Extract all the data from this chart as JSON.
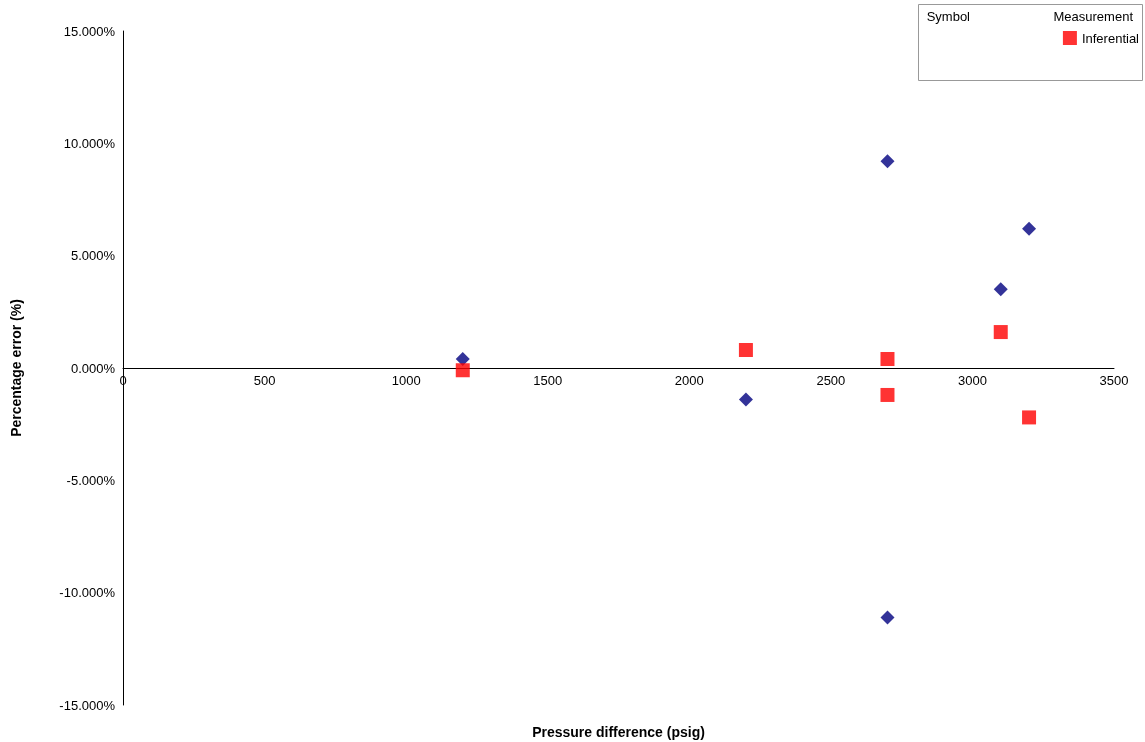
{
  "chart_data": {
    "type": "scatter",
    "xlabel": "Pressure difference (psig)",
    "ylabel": "Percentage error (%)",
    "xlim": [
      0,
      3500
    ],
    "xticks": [
      0,
      500,
      1000,
      1500,
      2000,
      2500,
      3000,
      3500
    ],
    "ylim": [
      -15,
      15
    ],
    "yticks": [
      {
        "value": -15,
        "label": "-15.000%"
      },
      {
        "value": -10,
        "label": "-10.000%"
      },
      {
        "value": -5,
        "label": "-5.000%"
      },
      {
        "value": 0,
        "label": "0.000%"
      },
      {
        "value": 5,
        "label": "5.000%"
      },
      {
        "value": 10,
        "label": "10.000%"
      },
      {
        "value": 15,
        "label": "15.000%"
      }
    ],
    "grid": false,
    "legend": "top right",
    "legend_title": "Symbol",
    "annotations": [
      "Measurement"
    ],
    "series": [
      {
        "color": "#000080",
        "marker": "diamond",
        "x": [
          1200,
          2200,
          2700,
          2700,
          3100,
          3200
        ],
        "values": [
          0.4,
          -1.4,
          9.2,
          -11.1,
          3.5,
          6.2
        ]
      },
      {
        "name": "Inferential",
        "color": "#ff0000",
        "marker": "square",
        "x": [
          1200,
          2200,
          2700,
          2700,
          3100,
          3200
        ],
        "values": [
          -0.1,
          0.8,
          0.4,
          -1.2,
          1.6,
          -2.2
        ]
      }
    ]
  }
}
